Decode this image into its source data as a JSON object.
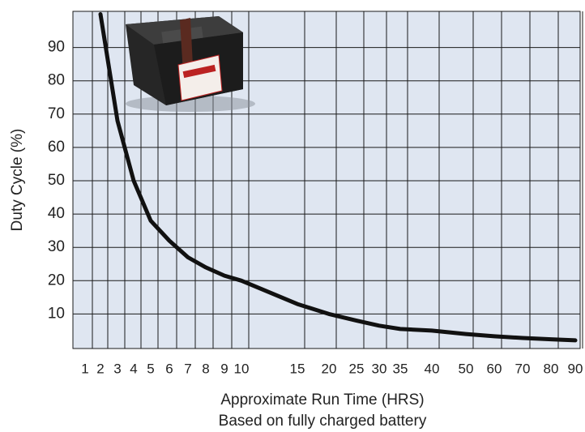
{
  "chart_data": {
    "type": "line",
    "y_label": "Duty Cycle (%)",
    "x_label": "Approximate Run Time (HRS)",
    "x_label_2": "Based on fully charged battery",
    "x": [
      2,
      3,
      4,
      5,
      6,
      7,
      8,
      9,
      10,
      15,
      20,
      25,
      30,
      35,
      40,
      50,
      60,
      70,
      80,
      90
    ],
    "values": [
      100,
      68,
      50,
      38,
      32,
      27,
      24,
      21.5,
      20,
      13,
      10,
      8,
      6.5,
      5.5,
      5,
      4,
      3.3,
      2.8,
      2.4,
      2.1
    ],
    "color": "#111111",
    "ylim": [
      0,
      100
    ],
    "yticks": [
      10,
      20,
      30,
      40,
      50,
      60,
      70,
      80,
      90
    ],
    "xticks": [
      1,
      2,
      3,
      4,
      5,
      6,
      7,
      8,
      9,
      10,
      15,
      20,
      25,
      30,
      35,
      40,
      50,
      60,
      70,
      80,
      90
    ],
    "grid": true
  }
}
